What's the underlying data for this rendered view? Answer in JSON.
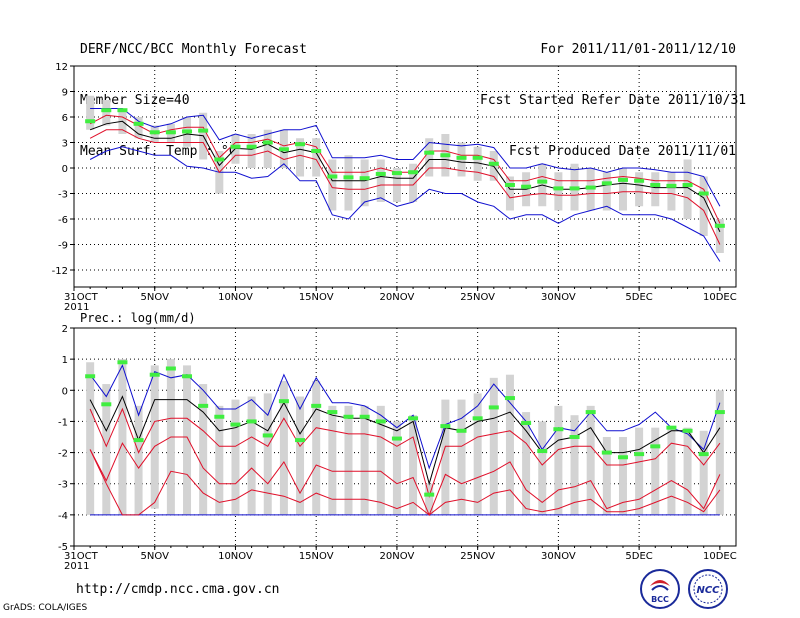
{
  "header": {
    "left": [
      "DERF/NCC/BCC Monthly Forecast",
      "Member Size=40",
      "Mean Surf. Temp.: °C"
    ],
    "right": [
      "For 2011/11/01-2011/12/10",
      "Fcst Started Refer Date 2011/10/31",
      "Fcst Produced Date 2011/11/01"
    ]
  },
  "footer": {
    "url": "http://cmdp.ncc.cma.gov.cn",
    "credit": "GrADS: COLA/IGES",
    "logo_left_text": "BCC",
    "logo_right_text": "NCC"
  },
  "colors": {
    "band": "#d3d3d3",
    "mean": "#000000",
    "inner": "#e0102a",
    "outer": "#1010d0",
    "marker": "#40ee40",
    "grid": "#000000"
  },
  "chart_data": [
    {
      "type": "line",
      "title": "Mean Surf. Temp.: °C",
      "x_tick_labels": [
        "31OCT\n2011",
        "5NOV",
        "10NOV",
        "15NOV",
        "20NOV",
        "25NOV",
        "30NOV",
        "5DEC",
        "10DEC"
      ],
      "x_tick_days": [
        0,
        5,
        10,
        15,
        20,
        25,
        30,
        35,
        40
      ],
      "x_range": [
        0,
        41
      ],
      "ylim": [
        -14,
        12
      ],
      "y_ticks": [
        12,
        9,
        6,
        3,
        0,
        -3,
        -6,
        -9,
        -12
      ],
      "x": [
        1,
        2,
        3,
        4,
        5,
        6,
        7,
        8,
        9,
        10,
        11,
        12,
        13,
        14,
        15,
        16,
        17,
        18,
        19,
        20,
        21,
        22,
        23,
        24,
        25,
        26,
        27,
        28,
        29,
        30,
        31,
        32,
        33,
        34,
        35,
        36,
        37,
        38,
        39,
        40
      ],
      "series": [
        {
          "name": "ensemble_max",
          "values": [
            8.5,
            8,
            7,
            6,
            5,
            5.2,
            6,
            6.5,
            2,
            4,
            4,
            4.5,
            4.5,
            3.5,
            3.5,
            1,
            1.5,
            1,
            1,
            0,
            0.5,
            3.5,
            4,
            3,
            2.5,
            2,
            -1,
            -0.5,
            0.5,
            -0.5,
            0.5,
            0,
            -0.5,
            0,
            -0.5,
            -0.5,
            -0.5,
            1,
            -1,
            -6
          ]
        },
        {
          "name": "ensemble_min",
          "values": [
            4.5,
            5,
            4,
            3.5,
            3,
            3,
            2.5,
            1,
            -3,
            0.5,
            0,
            0,
            0,
            -1,
            -1,
            -5,
            -5,
            -4.5,
            -4,
            -4,
            -4,
            -1,
            -1,
            -1,
            -1.5,
            -1.5,
            -5,
            -4.5,
            -4.5,
            -5,
            -5,
            -5,
            -5,
            -5,
            -4.5,
            -4.5,
            -5,
            -6,
            -8,
            -10
          ]
        },
        {
          "name": "upper_envelope",
          "values": [
            7,
            7,
            7,
            5.5,
            4.8,
            5.2,
            6,
            6.2,
            3.3,
            4,
            3.5,
            4,
            4.5,
            4.5,
            5,
            1.2,
            1.2,
            1.2,
            1.5,
            1,
            1,
            3,
            2.8,
            2.6,
            2.8,
            2.4,
            0,
            0,
            0.5,
            0,
            -0.2,
            0,
            -0.5,
            0,
            0,
            -0.2,
            -0.5,
            -0.5,
            -1,
            -4.5
          ]
        },
        {
          "name": "upper_spread",
          "values": [
            5.2,
            6.2,
            6,
            5,
            4,
            4.5,
            4.8,
            4.8,
            1.2,
            3,
            3,
            3.4,
            2.6,
            3,
            2.5,
            -0.5,
            -0.5,
            -0.5,
            0,
            -0.5,
            -0.5,
            2,
            2,
            1.5,
            1.5,
            1,
            -1.5,
            -1.5,
            -1,
            -1.5,
            -1.5,
            -1.5,
            -1.2,
            -1,
            -1.2,
            -1.5,
            -1.5,
            -1.5,
            -2.5,
            -6.5
          ]
        },
        {
          "name": "mean",
          "values": [
            4.5,
            5.2,
            5.5,
            4,
            3.5,
            3.5,
            4,
            3.8,
            0.3,
            2.3,
            2.2,
            2.8,
            1.8,
            2.2,
            1.8,
            -1.5,
            -1.5,
            -1.5,
            -1,
            -1.2,
            -1.2,
            1,
            1,
            0.7,
            0.6,
            0.2,
            -2.5,
            -2.5,
            -2,
            -2.5,
            -2.5,
            -2.3,
            -2,
            -1.8,
            -2,
            -2.3,
            -2.3,
            -2.3,
            -3.5,
            -7.5
          ]
        },
        {
          "name": "lower_spread",
          "values": [
            3.5,
            4.5,
            4.5,
            3.5,
            3,
            3,
            3,
            3,
            -0.5,
            1.5,
            1.5,
            2,
            1,
            1.5,
            1,
            -2.3,
            -2.5,
            -2.5,
            -2,
            -2,
            -2,
            0,
            0,
            -0.3,
            -0.5,
            -1,
            -3.5,
            -3.2,
            -3,
            -3.2,
            -3.2,
            -3,
            -3,
            -2.8,
            -2.8,
            -3,
            -3,
            -3.5,
            -5,
            -9
          ]
        },
        {
          "name": "lower_envelope",
          "values": [
            1,
            2,
            2.5,
            2,
            1.5,
            1.5,
            0.2,
            0,
            -0.5,
            -0.5,
            -1.2,
            -1,
            0.5,
            -1.5,
            -1.5,
            -5.5,
            -6,
            -4,
            -3.5,
            -4.5,
            -4,
            -2.5,
            -3,
            -3,
            -4,
            -4.5,
            -6,
            -5.5,
            -5.5,
            -6.5,
            -5.5,
            -5,
            -4.5,
            -5.5,
            -5.5,
            -5.5,
            -6,
            -7,
            -8,
            -11
          ]
        },
        {
          "name": "observation_marker",
          "values": [
            5.5,
            6.8,
            6.8,
            5.2,
            4.2,
            4.2,
            4.3,
            4.4,
            1,
            2.5,
            2.5,
            3,
            2.2,
            2.8,
            2,
            -1,
            -1.1,
            -1.2,
            -0.7,
            -0.6,
            -0.5,
            1.8,
            1.5,
            1.2,
            1.2,
            0.5,
            -2,
            -2.2,
            -1.6,
            -2.4,
            -2.4,
            -2.3,
            -1.8,
            -1.4,
            -1.5,
            -2,
            -2.1,
            -2,
            -3,
            -6.8
          ]
        }
      ]
    },
    {
      "type": "line",
      "title": "Prec.: log(mm/d)",
      "x_tick_labels": [
        "31OCT\n2011",
        "5NOV",
        "10NOV",
        "15NOV",
        "20NOV",
        "25NOV",
        "30NOV",
        "5DEC",
        "10DEC"
      ],
      "x_tick_days": [
        0,
        5,
        10,
        15,
        20,
        25,
        30,
        35,
        40
      ],
      "x_range": [
        0,
        41
      ],
      "ylim": [
        -5,
        2
      ],
      "y_ticks": [
        2,
        1,
        0,
        -1,
        -2,
        -3,
        -4,
        -5
      ],
      "x": [
        1,
        2,
        3,
        4,
        5,
        6,
        7,
        8,
        9,
        10,
        11,
        12,
        13,
        14,
        15,
        16,
        17,
        18,
        19,
        20,
        21,
        22,
        23,
        24,
        25,
        26,
        27,
        28,
        29,
        30,
        31,
        32,
        33,
        34,
        35,
        36,
        37,
        38,
        39,
        40
      ],
      "series": [
        {
          "name": "ensemble_max",
          "values": [
            0.9,
            0.2,
            1,
            -0.5,
            0.8,
            1,
            0.8,
            0.2,
            -0.5,
            -0.3,
            -0.2,
            -0.1,
            0.3,
            -0.2,
            0.3,
            -0.5,
            -0.5,
            -0.5,
            -0.5,
            -1,
            -0.8,
            -3,
            -0.3,
            -0.3,
            -0.1,
            0.4,
            0.5,
            -0.7,
            -1,
            -0.5,
            -0.8,
            -0.5,
            -1.5,
            -1.5,
            -1.2,
            -1.2,
            -1.2,
            -1.2,
            -1.3,
            0
          ]
        },
        {
          "name": "ensemble_min",
          "values": [
            -4,
            -4,
            -4,
            -4,
            -3.8,
            -4,
            -4,
            -4,
            -4,
            -4,
            -4,
            -4,
            -4,
            -4,
            -4,
            -4,
            -4,
            -4,
            -4,
            -4,
            -4,
            -4,
            -4,
            -4,
            -4,
            -4,
            -4,
            -4,
            -4,
            -4,
            -4,
            -4,
            -4,
            -4,
            -4,
            -4,
            -4,
            -4,
            -4,
            -4
          ]
        },
        {
          "name": "upper_envelope",
          "values": [
            0.5,
            -0.2,
            0.8,
            -0.8,
            0.6,
            0.4,
            0.5,
            0,
            -0.6,
            -0.6,
            -0.3,
            -0.8,
            0.5,
            -0.6,
            0.4,
            -0.4,
            -0.4,
            -0.5,
            -0.8,
            -1.2,
            -0.8,
            -2.5,
            -1.1,
            -0.9,
            -0.5,
            0.2,
            -0.4,
            -1,
            -1.9,
            -1.2,
            -1.3,
            -0.7,
            -1.3,
            -1.3,
            -1.1,
            -0.7,
            -1.2,
            -1.4,
            -1.9,
            -0.4
          ]
        },
        {
          "name": "mean",
          "values": [
            -0.3,
            -1.3,
            -0.2,
            -1.6,
            -0.3,
            -0.3,
            -0.3,
            -0.7,
            -1.3,
            -1.2,
            -1,
            -1.3,
            -0.4,
            -1.4,
            -0.6,
            -0.8,
            -0.9,
            -0.9,
            -1.1,
            -1.3,
            -1,
            -3,
            -1.2,
            -1.3,
            -1,
            -0.9,
            -0.7,
            -1.3,
            -2,
            -1.6,
            -1.5,
            -1.2,
            -2,
            -2,
            -1.9,
            -1.6,
            -1.3,
            -1.3,
            -2,
            -1.2
          ]
        },
        {
          "name": "upper_spread",
          "values": [
            -0.6,
            -1.8,
            -0.6,
            -2,
            -1,
            -0.9,
            -0.9,
            -1.3,
            -1.8,
            -1.8,
            -1.5,
            -1.8,
            -0.9,
            -1.8,
            -1.2,
            -1.3,
            -1.4,
            -1.4,
            -1.5,
            -1.8,
            -1.5,
            -3.4,
            -1.8,
            -1.8,
            -1.5,
            -1.4,
            -1.3,
            -1.7,
            -2.4,
            -1.9,
            -1.8,
            -1.8,
            -2.4,
            -2.4,
            -2.3,
            -2.2,
            -1.7,
            -1.8,
            -2.4,
            -1.7
          ]
        },
        {
          "name": "lower_spread",
          "values": [
            -1.9,
            -2.9,
            -1.7,
            -2.5,
            -1.8,
            -1.5,
            -1.5,
            -2.5,
            -3,
            -3,
            -2.5,
            -3,
            -2.3,
            -3.3,
            -2.4,
            -2.6,
            -2.6,
            -2.6,
            -2.6,
            -3,
            -2.8,
            -4,
            -2.7,
            -3,
            -2.8,
            -2.6,
            -2.3,
            -3.2,
            -3.6,
            -3.2,
            -3.1,
            -2.9,
            -3.8,
            -3.6,
            -3.5,
            -3.2,
            -2.9,
            -3.2,
            -3.8,
            -2.7
          ]
        },
        {
          "name": "lower_envelope",
          "values": [
            -1.9,
            -3,
            -4,
            -4,
            -3.6,
            -2.6,
            -2.7,
            -3.3,
            -3.6,
            -3.5,
            -3.2,
            -3.3,
            -3.4,
            -3.6,
            -3.3,
            -3.5,
            -3.5,
            -3.5,
            -3.6,
            -3.8,
            -3.6,
            -4,
            -3.6,
            -3.5,
            -3.6,
            -3.3,
            -3.2,
            -3.8,
            -3.9,
            -3.8,
            -3.6,
            -3.5,
            -3.9,
            -3.9,
            -3.8,
            -3.6,
            -3.4,
            -3.6,
            -3.9,
            -3.2
          ]
        },
        {
          "name": "floor",
          "values": [
            -4,
            -4,
            -4,
            -4,
            -4,
            -4,
            -4,
            -4,
            -4,
            -4,
            -4,
            -4,
            -4,
            -4,
            -4,
            -4,
            -4,
            -4,
            -4,
            -4,
            -4,
            -4,
            -4,
            -4,
            -4,
            -4,
            -4,
            -4,
            -4,
            -4,
            -4,
            -4,
            -4,
            -4,
            -4,
            -4,
            -4,
            -4,
            -4,
            -4
          ]
        },
        {
          "name": "observation_marker",
          "values": [
            0.45,
            -0.45,
            0.9,
            -1.6,
            0.5,
            0.7,
            0.45,
            -0.5,
            -0.85,
            -1.1,
            -1,
            -1.45,
            -0.35,
            -1.6,
            -0.5,
            -0.7,
            -0.85,
            -0.85,
            -1,
            -1.55,
            -0.9,
            -3.35,
            -1.15,
            -1.3,
            -0.9,
            -0.55,
            -0.25,
            -1.05,
            -1.95,
            -1.25,
            -1.5,
            -0.7,
            -2,
            -2.15,
            -2.05,
            -1.8,
            -1.2,
            -1.3,
            -2.05,
            -0.7
          ]
        }
      ]
    }
  ]
}
